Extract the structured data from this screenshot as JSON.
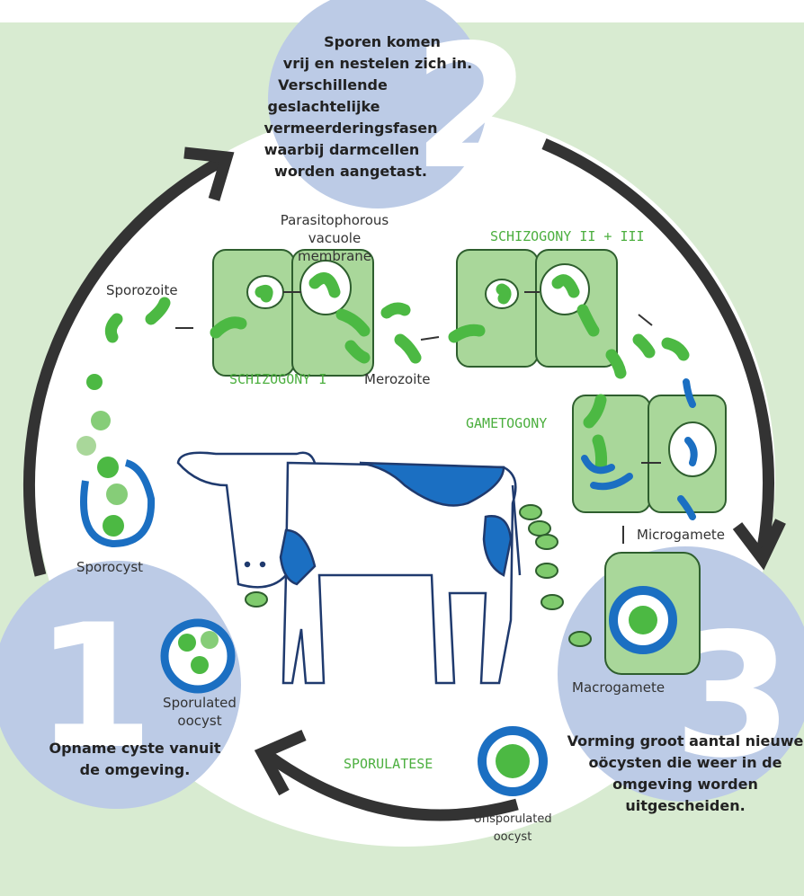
{
  "steps": [
    {
      "number": "1",
      "lines": [
        "Opname cyste vanuit",
        "de omgeving."
      ]
    },
    {
      "number": "2",
      "lines": [
        "Sporen komen",
        "vrij en nestelen zich in.",
        "Verschillende",
        "geslachtelijke",
        "vermeerderingsfasen",
        "waarbij darmcellen",
        "worden aangetast."
      ]
    },
    {
      "number": "3",
      "lines": [
        "Vorming groot aantal nieuwe",
        "oöcysten die weer in de",
        "omgeving worden",
        "uitgescheiden."
      ]
    }
  ],
  "labels": {
    "sporozoite": "Sporozoite",
    "vacuole": [
      "Parasitophorous",
      "vacuole",
      "membrane"
    ],
    "schizogony1": "SCHIZOGONY I",
    "merozoite": "Merozoite",
    "schizogony23": "SCHIZOGONY II + III",
    "gametogony": "GAMETOGONY",
    "microgamete": "Microgamete",
    "macrogamete": "Macrogamete",
    "sporocyst": "Sporocyst",
    "sporulated": [
      "Sporulated",
      "oocyst"
    ],
    "sporulatese": "SPORULATESE",
    "unsporulated": [
      "Unsporulated",
      "oocyst"
    ]
  }
}
